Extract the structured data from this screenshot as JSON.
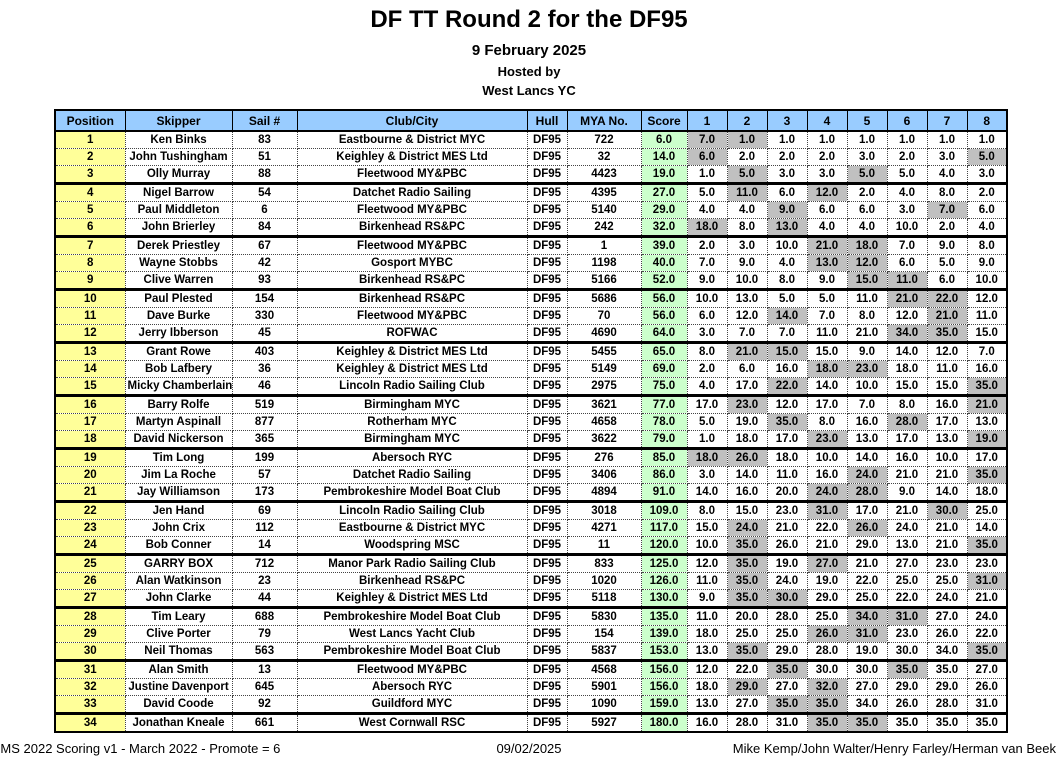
{
  "title": "DF TT Round 2 for the DF95",
  "subtitle": {
    "date": "9 February 2025",
    "hosted_by": "Hosted by",
    "host_club": "West Lancs YC"
  },
  "colors": {
    "header_bg": "#99CCFF",
    "position_bg": "#FFFF99",
    "score_bg": "#CCFFCC",
    "discard_bg": "#C0C0C0"
  },
  "table": {
    "headers": [
      "Position",
      "Skipper",
      "Sail #",
      "Club/City",
      "Hull",
      "MYA No.",
      "Score",
      "1",
      "2",
      "3",
      "4",
      "5",
      "6",
      "7",
      "8"
    ],
    "rows": [
      {
        "position": "1",
        "skipper": "Ken Binks",
        "sail": "83",
        "club": "Eastbourne & District MYC",
        "hull": "DF95",
        "mya": "722",
        "score": "6.0",
        "races": [
          "7.0",
          "1.0",
          "1.0",
          "1.0",
          "1.0",
          "1.0",
          "1.0",
          "1.0"
        ],
        "discards": [
          1,
          2
        ]
      },
      {
        "position": "2",
        "skipper": "John Tushingham",
        "sail": "51",
        "club": "Keighley & District MES Ltd",
        "hull": "DF95",
        "mya": "32",
        "score": "14.0",
        "races": [
          "6.0",
          "2.0",
          "2.0",
          "2.0",
          "3.0",
          "2.0",
          "3.0",
          "5.0"
        ],
        "discards": [
          1,
          8
        ]
      },
      {
        "position": "3",
        "skipper": "Olly Murray",
        "sail": "88",
        "club": "Fleetwood MY&PBC",
        "hull": "DF95",
        "mya": "4423",
        "score": "19.0",
        "races": [
          "1.0",
          "5.0",
          "3.0",
          "3.0",
          "5.0",
          "5.0",
          "4.0",
          "3.0"
        ],
        "discards": [
          2,
          5
        ]
      },
      {
        "position": "4",
        "skipper": "Nigel Barrow",
        "sail": "54",
        "club": "Datchet Radio Sailing",
        "hull": "DF95",
        "mya": "4395",
        "score": "27.0",
        "races": [
          "5.0",
          "11.0",
          "6.0",
          "12.0",
          "2.0",
          "4.0",
          "8.0",
          "2.0"
        ],
        "discards": [
          2,
          4
        ]
      },
      {
        "position": "5",
        "skipper": "Paul Middleton",
        "sail": "6",
        "club": "Fleetwood MY&PBC",
        "hull": "DF95",
        "mya": "5140",
        "score": "29.0",
        "races": [
          "4.0",
          "4.0",
          "9.0",
          "6.0",
          "6.0",
          "3.0",
          "7.0",
          "6.0"
        ],
        "discards": [
          3,
          7
        ]
      },
      {
        "position": "6",
        "skipper": "John Brierley",
        "sail": "84",
        "club": "Birkenhead RS&PC",
        "hull": "DF95",
        "mya": "242",
        "score": "32.0",
        "races": [
          "18.0",
          "8.0",
          "13.0",
          "4.0",
          "4.0",
          "10.0",
          "2.0",
          "4.0"
        ],
        "discards": [
          1,
          3
        ]
      },
      {
        "position": "7",
        "skipper": "Derek Priestley",
        "sail": "67",
        "club": "Fleetwood MY&PBC",
        "hull": "DF95",
        "mya": "1",
        "score": "39.0",
        "races": [
          "2.0",
          "3.0",
          "10.0",
          "21.0",
          "18.0",
          "7.0",
          "9.0",
          "8.0"
        ],
        "discards": [
          4,
          5
        ]
      },
      {
        "position": "8",
        "skipper": "Wayne Stobbs",
        "sail": "42",
        "club": "Gosport MYBC",
        "hull": "DF95",
        "mya": "1198",
        "score": "40.0",
        "races": [
          "7.0",
          "9.0",
          "4.0",
          "13.0",
          "12.0",
          "6.0",
          "5.0",
          "9.0"
        ],
        "discards": [
          4,
          5
        ]
      },
      {
        "position": "9",
        "skipper": "Clive Warren",
        "sail": "93",
        "club": "Birkenhead RS&PC",
        "hull": "DF95",
        "mya": "5166",
        "score": "52.0",
        "races": [
          "9.0",
          "10.0",
          "8.0",
          "9.0",
          "15.0",
          "11.0",
          "6.0",
          "10.0"
        ],
        "discards": [
          5,
          6
        ]
      },
      {
        "position": "10",
        "skipper": "Paul Plested",
        "sail": "154",
        "club": "Birkenhead RS&PC",
        "hull": "DF95",
        "mya": "5686",
        "score": "56.0",
        "races": [
          "10.0",
          "13.0",
          "5.0",
          "5.0",
          "11.0",
          "21.0",
          "22.0",
          "12.0"
        ],
        "discards": [
          6,
          7
        ]
      },
      {
        "position": "11",
        "skipper": "Dave Burke",
        "sail": "330",
        "club": "Fleetwood MY&PBC",
        "hull": "DF95",
        "mya": "70",
        "score": "56.0",
        "races": [
          "6.0",
          "12.0",
          "14.0",
          "7.0",
          "8.0",
          "12.0",
          "21.0",
          "11.0"
        ],
        "discards": [
          3,
          7
        ]
      },
      {
        "position": "12",
        "skipper": "Jerry Ibberson",
        "sail": "45",
        "club": "ROFWAC",
        "hull": "DF95",
        "mya": "4690",
        "score": "64.0",
        "races": [
          "3.0",
          "7.0",
          "7.0",
          "11.0",
          "21.0",
          "34.0",
          "35.0",
          "15.0"
        ],
        "discards": [
          6,
          7
        ]
      },
      {
        "position": "13",
        "skipper": "Grant Rowe",
        "sail": "403",
        "club": "Keighley & District MES Ltd",
        "hull": "DF95",
        "mya": "5455",
        "score": "65.0",
        "races": [
          "8.0",
          "21.0",
          "15.0",
          "15.0",
          "9.0",
          "14.0",
          "12.0",
          "7.0"
        ],
        "discards": [
          2,
          3
        ]
      },
      {
        "position": "14",
        "skipper": "Bob Lafbery",
        "sail": "36",
        "club": "Keighley & District MES Ltd",
        "hull": "DF95",
        "mya": "5149",
        "score": "69.0",
        "races": [
          "2.0",
          "6.0",
          "16.0",
          "18.0",
          "23.0",
          "18.0",
          "11.0",
          "16.0"
        ],
        "discards": [
          4,
          5
        ]
      },
      {
        "position": "15",
        "skipper": "Micky Chamberlain",
        "sail": "46",
        "club": "Lincoln Radio Sailing Club",
        "hull": "DF95",
        "mya": "2975",
        "score": "75.0",
        "races": [
          "4.0",
          "17.0",
          "22.0",
          "14.0",
          "10.0",
          "15.0",
          "15.0",
          "35.0"
        ],
        "discards": [
          3,
          8
        ]
      },
      {
        "position": "16",
        "skipper": "Barry Rolfe",
        "sail": "519",
        "club": "Birmingham MYC",
        "hull": "DF95",
        "mya": "3621",
        "score": "77.0",
        "races": [
          "17.0",
          "23.0",
          "12.0",
          "17.0",
          "7.0",
          "8.0",
          "16.0",
          "21.0"
        ],
        "discards": [
          2,
          8
        ]
      },
      {
        "position": "17",
        "skipper": "Martyn Aspinall",
        "sail": "877",
        "club": "Rotherham MYC",
        "hull": "DF95",
        "mya": "4658",
        "score": "78.0",
        "races": [
          "5.0",
          "19.0",
          "35.0",
          "8.0",
          "16.0",
          "28.0",
          "17.0",
          "13.0"
        ],
        "discards": [
          3,
          6
        ]
      },
      {
        "position": "18",
        "skipper": "David Nickerson",
        "sail": "365",
        "club": "Birmingham MYC",
        "hull": "DF95",
        "mya": "3622",
        "score": "79.0",
        "races": [
          "1.0",
          "18.0",
          "17.0",
          "23.0",
          "13.0",
          "17.0",
          "13.0",
          "19.0"
        ],
        "discards": [
          4,
          8
        ]
      },
      {
        "position": "19",
        "skipper": "Tim Long",
        "sail": "199",
        "club": "Abersoch RYC",
        "hull": "DF95",
        "mya": "276",
        "score": "85.0",
        "races": [
          "18.0",
          "26.0",
          "18.0",
          "10.0",
          "14.0",
          "16.0",
          "10.0",
          "17.0"
        ],
        "discards": [
          1,
          2
        ]
      },
      {
        "position": "20",
        "skipper": "Jim La Roche",
        "sail": "57",
        "club": "Datchet Radio Sailing",
        "hull": "DF95",
        "mya": "3406",
        "score": "86.0",
        "races": [
          "3.0",
          "14.0",
          "11.0",
          "16.0",
          "24.0",
          "21.0",
          "21.0",
          "35.0"
        ],
        "discards": [
          5,
          8
        ]
      },
      {
        "position": "21",
        "skipper": "Jay Williamson",
        "sail": "173",
        "club": "Pembrokeshire Model Boat Club",
        "hull": "DF95",
        "mya": "4894",
        "score": "91.0",
        "races": [
          "14.0",
          "16.0",
          "20.0",
          "24.0",
          "28.0",
          "9.0",
          "14.0",
          "18.0"
        ],
        "discards": [
          4,
          5
        ]
      },
      {
        "position": "22",
        "skipper": "Jen Hand",
        "sail": "69",
        "club": "Lincoln Radio Sailing Club",
        "hull": "DF95",
        "mya": "3018",
        "score": "109.0",
        "races": [
          "8.0",
          "15.0",
          "23.0",
          "31.0",
          "17.0",
          "21.0",
          "30.0",
          "25.0"
        ],
        "discards": [
          4,
          7
        ]
      },
      {
        "position": "23",
        "skipper": "John Crix",
        "sail": "112",
        "club": "Eastbourne & District MYC",
        "hull": "DF95",
        "mya": "4271",
        "score": "117.0",
        "races": [
          "15.0",
          "24.0",
          "21.0",
          "22.0",
          "26.0",
          "24.0",
          "21.0",
          "14.0"
        ],
        "discards": [
          2,
          5
        ]
      },
      {
        "position": "24",
        "skipper": "Bob Conner",
        "sail": "14",
        "club": "Woodspring MSC",
        "hull": "DF95",
        "mya": "11",
        "score": "120.0",
        "races": [
          "10.0",
          "35.0",
          "26.0",
          "21.0",
          "29.0",
          "13.0",
          "21.0",
          "35.0"
        ],
        "discards": [
          2,
          8
        ]
      },
      {
        "position": "25",
        "skipper": "GARRY BOX",
        "sail": "712",
        "club": "Manor Park Radio Sailing Club",
        "hull": "DF95",
        "mya": "833",
        "score": "125.0",
        "races": [
          "12.0",
          "35.0",
          "19.0",
          "27.0",
          "21.0",
          "27.0",
          "23.0",
          "23.0"
        ],
        "discards": [
          2,
          4
        ]
      },
      {
        "position": "26",
        "skipper": "Alan Watkinson",
        "sail": "23",
        "club": "Birkenhead RS&PC",
        "hull": "DF95",
        "mya": "1020",
        "score": "126.0",
        "races": [
          "11.0",
          "35.0",
          "24.0",
          "19.0",
          "22.0",
          "25.0",
          "25.0",
          "31.0"
        ],
        "discards": [
          2,
          8
        ]
      },
      {
        "position": "27",
        "skipper": "John Clarke",
        "sail": "44",
        "club": "Keighley & District MES Ltd",
        "hull": "DF95",
        "mya": "5118",
        "score": "130.0",
        "races": [
          "9.0",
          "35.0",
          "30.0",
          "29.0",
          "25.0",
          "22.0",
          "24.0",
          "21.0"
        ],
        "discards": [
          2,
          3
        ]
      },
      {
        "position": "28",
        "skipper": "Tim Leary",
        "sail": "688",
        "club": "Pembrokeshire Model Boat Club",
        "hull": "DF95",
        "mya": "5830",
        "score": "135.0",
        "races": [
          "11.0",
          "20.0",
          "28.0",
          "25.0",
          "34.0",
          "31.0",
          "27.0",
          "24.0"
        ],
        "discards": [
          5,
          6
        ]
      },
      {
        "position": "29",
        "skipper": "Clive Porter",
        "sail": "79",
        "club": "West Lancs Yacht Club",
        "hull": "DF95",
        "mya": "154",
        "score": "139.0",
        "races": [
          "18.0",
          "25.0",
          "25.0",
          "26.0",
          "31.0",
          "23.0",
          "26.0",
          "22.0"
        ],
        "discards": [
          4,
          5
        ]
      },
      {
        "position": "30",
        "skipper": "Neil Thomas",
        "sail": "563",
        "club": "Pembrokeshire Model Boat Club",
        "hull": "DF95",
        "mya": "5837",
        "score": "153.0",
        "races": [
          "13.0",
          "35.0",
          "29.0",
          "28.0",
          "19.0",
          "30.0",
          "34.0",
          "35.0"
        ],
        "discards": [
          2,
          8
        ]
      },
      {
        "position": "31",
        "skipper": "Alan Smith",
        "sail": "13",
        "club": "Fleetwood MY&PBC",
        "hull": "DF95",
        "mya": "4568",
        "score": "156.0",
        "races": [
          "12.0",
          "22.0",
          "35.0",
          "30.0",
          "30.0",
          "35.0",
          "35.0",
          "27.0"
        ],
        "discards": [
          3,
          6
        ]
      },
      {
        "position": "32",
        "skipper": "Justine Davenport",
        "sail": "645",
        "club": "Abersoch RYC",
        "hull": "DF95",
        "mya": "5901",
        "score": "156.0",
        "races": [
          "18.0",
          "29.0",
          "27.0",
          "32.0",
          "27.0",
          "29.0",
          "29.0",
          "26.0"
        ],
        "discards": [
          2,
          4
        ]
      },
      {
        "position": "33",
        "skipper": "David Coode",
        "sail": "92",
        "club": "Guildford MYC",
        "hull": "DF95",
        "mya": "1090",
        "score": "159.0",
        "races": [
          "13.0",
          "27.0",
          "35.0",
          "35.0",
          "34.0",
          "26.0",
          "28.0",
          "31.0"
        ],
        "discards": [
          3,
          4
        ]
      },
      {
        "position": "34",
        "skipper": "Jonathan Kneale",
        "sail": "661",
        "club": "West Cornwall RSC",
        "hull": "DF95",
        "mya": "5927",
        "score": "180.0",
        "races": [
          "16.0",
          "28.0",
          "31.0",
          "35.0",
          "35.0",
          "35.0",
          "35.0",
          "35.0"
        ],
        "discards": [
          4,
          5
        ]
      }
    ]
  },
  "footer": {
    "left": "HMS 2022 Scoring v1 - March 2022 - Promote = 6",
    "center": "09/02/2025",
    "right": "Mike Kemp/John Walter/Henry Farley/Herman van Beek"
  }
}
